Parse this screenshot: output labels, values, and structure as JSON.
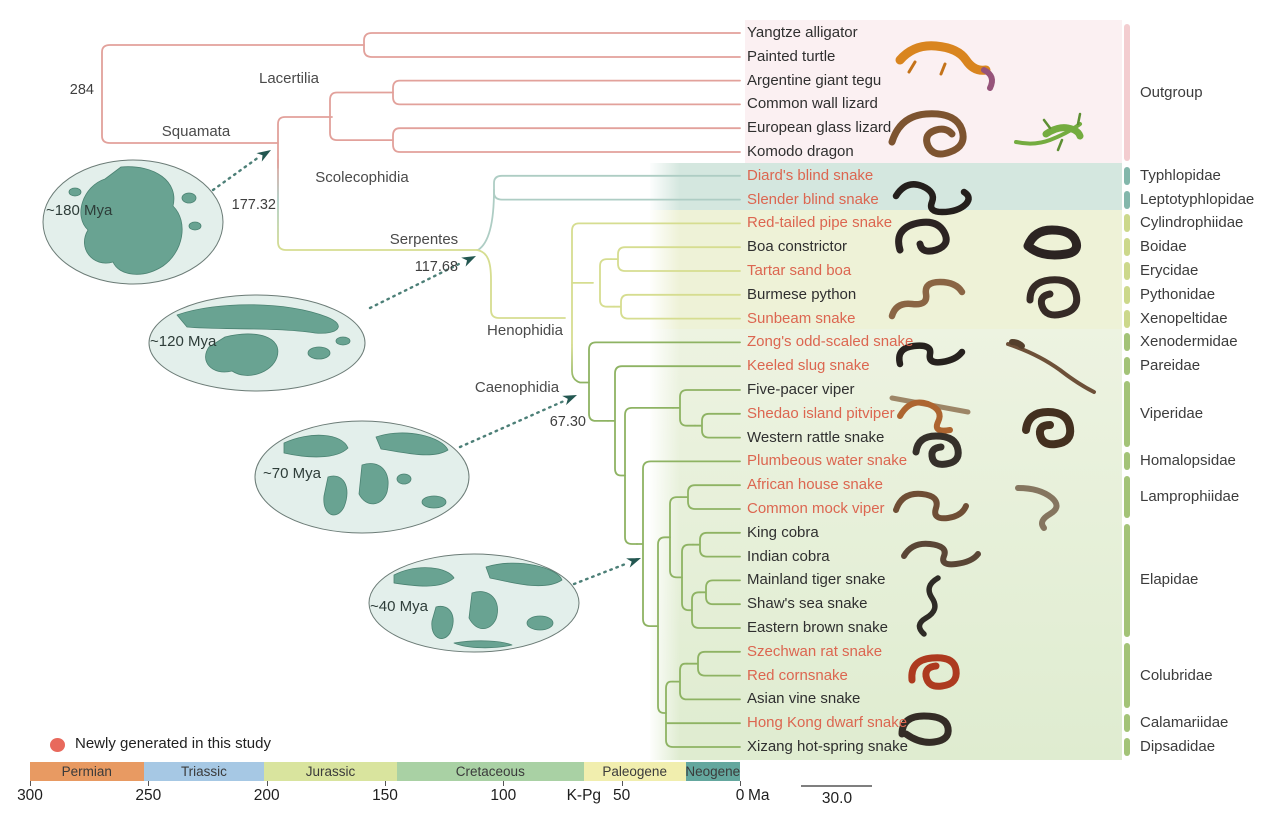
{
  "legend": {
    "label": "Newly generated in this study"
  },
  "clade_labels": {
    "squamata": "Squamata",
    "lacertilia": "Lacertilia",
    "scolecophidia": "Scolecophidia",
    "serpentes": "Serpentes",
    "henophidia": "Henophidia",
    "caenophidia": "Caenophidia"
  },
  "node_ages": {
    "root": "284",
    "squamata": "177.32",
    "serpentes": "117.68",
    "caenophidia": "67.30"
  },
  "maps": [
    {
      "label": "~180 Mya"
    },
    {
      "label": "~120 Mya"
    },
    {
      "label": "~70 Mya"
    },
    {
      "label": "~40 Mya"
    }
  ],
  "species": [
    {
      "name": "Yangtze alligator",
      "newly": false,
      "group": "outgroup"
    },
    {
      "name": "Painted turtle",
      "newly": false,
      "group": "outgroup"
    },
    {
      "name": "Argentine giant tegu",
      "newly": false,
      "group": "outgroup"
    },
    {
      "name": "Common wall lizard",
      "newly": false,
      "group": "outgroup"
    },
    {
      "name": "European glass lizard",
      "newly": false,
      "group": "outgroup"
    },
    {
      "name": "Komodo dragon",
      "newly": false,
      "group": "outgroup"
    },
    {
      "name": "Diard's blind snake",
      "newly": true,
      "group": "scolecophidia"
    },
    {
      "name": "Slender blind snake",
      "newly": true,
      "group": "scolecophidia"
    },
    {
      "name": "Red-tailed pipe snake",
      "newly": true,
      "group": "henophidia"
    },
    {
      "name": "Boa constrictor",
      "newly": false,
      "group": "henophidia"
    },
    {
      "name": "Tartar sand boa",
      "newly": true,
      "group": "henophidia"
    },
    {
      "name": "Burmese python",
      "newly": false,
      "group": "henophidia"
    },
    {
      "name": "Sunbeam snake",
      "newly": true,
      "group": "henophidia"
    },
    {
      "name": "Zong's odd-scaled snake",
      "newly": true,
      "group": "caenophidia"
    },
    {
      "name": "Keeled slug snake",
      "newly": true,
      "group": "caenophidia"
    },
    {
      "name": "Five-pacer viper",
      "newly": false,
      "group": "caenophidia"
    },
    {
      "name": "Shedao island pitviper",
      "newly": true,
      "group": "caenophidia"
    },
    {
      "name": "Western rattle snake",
      "newly": false,
      "group": "caenophidia"
    },
    {
      "name": "Plumbeous water snake",
      "newly": true,
      "group": "caenophidia"
    },
    {
      "name": "African house snake",
      "newly": true,
      "group": "caenophidia"
    },
    {
      "name": "Common mock viper",
      "newly": true,
      "group": "caenophidia"
    },
    {
      "name": "King cobra",
      "newly": false,
      "group": "caenophidia"
    },
    {
      "name": "Indian cobra",
      "newly": false,
      "group": "caenophidia"
    },
    {
      "name": "Mainland tiger snake",
      "newly": false,
      "group": "caenophidia"
    },
    {
      "name": "Shaw's sea snake",
      "newly": false,
      "group": "caenophidia"
    },
    {
      "name": "Eastern brown snake",
      "newly": false,
      "group": "caenophidia"
    },
    {
      "name": "Szechwan rat snake",
      "newly": true,
      "group": "caenophidia"
    },
    {
      "name": "Red cornsnake",
      "newly": true,
      "group": "caenophidia"
    },
    {
      "name": "Asian vine snake",
      "newly": false,
      "group": "caenophidia"
    },
    {
      "name": "Hong Kong dwarf snake",
      "newly": true,
      "group": "caenophidia"
    },
    {
      "name": "Xizang hot-spring snake",
      "newly": false,
      "group": "caenophidia"
    }
  ],
  "families": [
    {
      "name": "Outgroup",
      "from_row": 1,
      "to_row": 6,
      "group": "outgroup"
    },
    {
      "name": "Typhlopidae",
      "from_row": 7,
      "to_row": 7,
      "group": "scolecophidia"
    },
    {
      "name": "Leptotyphlopidae",
      "from_row": 8,
      "to_row": 8,
      "group": "scolecophidia"
    },
    {
      "name": "Cylindrophiidae",
      "from_row": 9,
      "to_row": 9,
      "group": "henophidia"
    },
    {
      "name": "Boidae",
      "from_row": 10,
      "to_row": 10,
      "group": "henophidia"
    },
    {
      "name": "Erycidae",
      "from_row": 11,
      "to_row": 11,
      "group": "henophidia"
    },
    {
      "name": "Pythonidae",
      "from_row": 12,
      "to_row": 12,
      "group": "henophidia"
    },
    {
      "name": "Xenopeltidae",
      "from_row": 13,
      "to_row": 13,
      "group": "henophidia"
    },
    {
      "name": "Xenodermidae",
      "from_row": 14,
      "to_row": 14,
      "group": "caenophidia"
    },
    {
      "name": "Pareidae",
      "from_row": 15,
      "to_row": 15,
      "group": "caenophidia"
    },
    {
      "name": "Viperidae",
      "from_row": 16,
      "to_row": 18,
      "group": "caenophidia"
    },
    {
      "name": "Homalopsidae",
      "from_row": 19,
      "to_row": 19,
      "group": "caenophidia"
    },
    {
      "name": "Lamprophiidae",
      "from_row": 20,
      "to_row": 21,
      "group": "caenophidia"
    },
    {
      "name": "Elapidae",
      "from_row": 22,
      "to_row": 26,
      "group": "caenophidia"
    },
    {
      "name": "Colubridae",
      "from_row": 27,
      "to_row": 29,
      "group": "caenophidia"
    },
    {
      "name": "Calamariidae",
      "from_row": 30,
      "to_row": 30,
      "group": "caenophidia"
    },
    {
      "name": "Dipsadidae",
      "from_row": 31,
      "to_row": 31,
      "group": "caenophidia"
    }
  ],
  "timescale": {
    "axis_start_ma": 300,
    "axis_end_ma": 0,
    "periods": [
      {
        "name": "Permian",
        "from": 300,
        "to": 252,
        "color": "#e89a62"
      },
      {
        "name": "Triassic",
        "from": 252,
        "to": 201,
        "color": "#a6c8e4"
      },
      {
        "name": "Jurassic",
        "from": 201,
        "to": 145,
        "color": "#d9e49e"
      },
      {
        "name": "Cretaceous",
        "from": 145,
        "to": 66,
        "color": "#a9d1a4"
      },
      {
        "name": "Paleogene",
        "from": 66,
        "to": 23,
        "color": "#f1eeae"
      },
      {
        "name": "Neogene",
        "from": 23,
        "to": 0,
        "color": "#64a79e"
      }
    ],
    "ticks": [
      300,
      250,
      200,
      150,
      100,
      50,
      0
    ],
    "kpg_label": "K-Pg",
    "kpg_ma": 66,
    "unit": "Ma",
    "scalebar_label": "30.0",
    "scalebar_ma": 30
  },
  "colors": {
    "newly": "#dc6650",
    "text_dark": "#2f2f2f",
    "legend_dot": "#e8695c",
    "branch_outgroup": "#e2a19b",
    "branch_scolecophidia": "#aecdc4",
    "branch_henophidia": "#d6dd90",
    "branch_caenophidia": "#8eb363",
    "band_outgroup": "#fbf0f2",
    "band_scolecophidia": "#d4e7df",
    "band_henophidia": "#eef2d7",
    "band_caenophidia_top": "#edf3e1",
    "band_caenophidia_bottom": "#dfecd0",
    "bar_outgroup": "#f3cdd0",
    "bar_scolecophidia": "#83b7ab",
    "bar_henophidia": "#ccd88b",
    "bar_caenophidia": "#a3c377"
  }
}
